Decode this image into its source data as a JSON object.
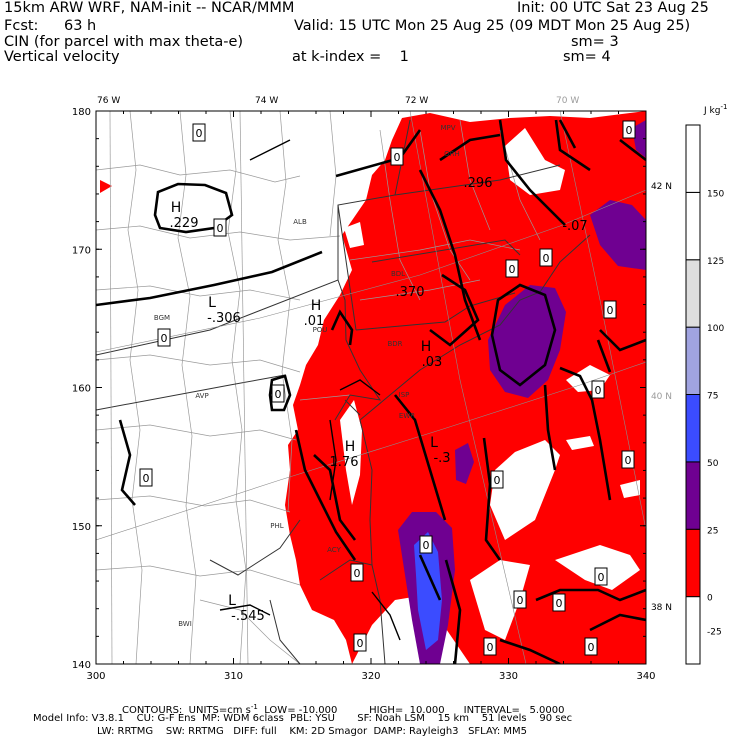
{
  "header": {
    "model": "15km ARW WRF, NAM-init -- NCAR/MMM",
    "init": "Init: 00 UTC Sat 23 Aug 25",
    "fcst_label": "Fcst:",
    "fcst_value": "63 h",
    "valid": "Valid: 15 UTC Mon 25 Aug 25 (09 MDT Mon 25 Aug 25)",
    "field1": "CIN (for parcel with max theta-e)",
    "sm1": "sm= 3",
    "field2": "Vertical velocity",
    "kindex": "at k-index =    1",
    "sm2": "sm= 4"
  },
  "footer": {
    "contours": "CONTOURS:  UNITS=cm s",
    "contours_sup": "-1",
    "contours_rest": "  LOW= -10.000          HIGH=  10.000      INTERVAL=   5.0000",
    "model_info": "Model Info: V3.8.1    CU: G-F Ens  MP: WDM 6class  PBL: YSU       SF: Noah LSM    15 km    51 levels    90 sec",
    "model_info2": "LW: RRTMG    SW: RRTMG   DIFF: full    KM: 2D Smagor  DAMP: Rayleigh3   SFLAY: MM5"
  },
  "chart_data": {
    "type": "heatmap",
    "xlim": [
      300,
      340
    ],
    "ylim": [
      140,
      180
    ],
    "x_ticks": [
      300,
      310,
      320,
      330,
      340
    ],
    "y_ticks": [
      140,
      150,
      160,
      170,
      180
    ],
    "lon_labels": [
      "76 W",
      "74 W",
      "72 W",
      "70 W"
    ],
    "lat_labels": [
      "42 N",
      "40 N",
      "38 N"
    ],
    "colorbar": {
      "unit": "J kg",
      "unit_sup": "-1",
      "bins": [
        {
          "label": "-25",
          "color": "#ffffff"
        },
        {
          "label": "0",
          "color": "#ff0000"
        },
        {
          "label": "25",
          "color": "#6f0091"
        },
        {
          "label": "50",
          "color": "#3b4cff"
        },
        {
          "label": "75",
          "color": "#a0a3e0"
        },
        {
          "label": "100",
          "color": "#dedede"
        },
        {
          "label": "125",
          "color": "#ffffff"
        },
        {
          "label": "150",
          "color": "#ffffff"
        }
      ]
    },
    "contour_labels": [
      "0",
      "0",
      "0",
      "0",
      "0",
      "0",
      "0",
      "0",
      "0",
      "0",
      "0",
      "0",
      "0",
      "0",
      "0",
      "0",
      "0",
      "0",
      "0",
      "0",
      "0"
    ],
    "highs": [
      {
        "symbol": "H",
        "value": ".229"
      },
      {
        "symbol": "H",
        "value": ".01"
      },
      {
        "symbol": "H",
        "value": ".03"
      },
      {
        "symbol": "H",
        "value": "1.76"
      }
    ],
    "lows": [
      {
        "symbol": "L",
        "value": "-.306"
      },
      {
        "symbol": "L",
        "value": "-.3"
      },
      {
        "symbol": "L",
        "value": "-.545"
      }
    ],
    "other_values": [
      ".296",
      ".370",
      "-.07"
    ],
    "stations": [
      "MPV",
      "ALB",
      "BGM",
      "POU",
      "AVP",
      "PHL",
      "ACY",
      "BWI",
      "ORH",
      "BDL",
      "BDR",
      "ISP",
      "EWR"
    ]
  }
}
